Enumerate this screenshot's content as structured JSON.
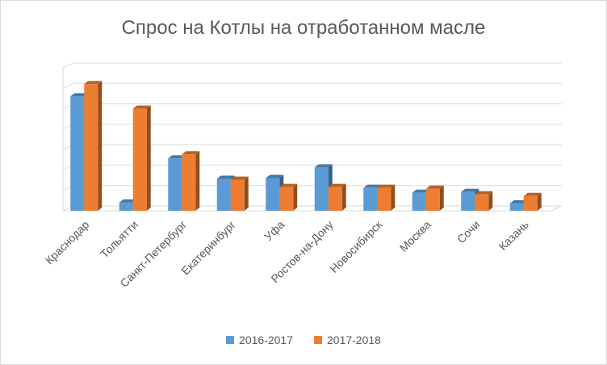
{
  "chart_data": {
    "type": "bar",
    "title": "Спрос на Котлы на отработанном масле",
    "categories": [
      "Краснодар",
      "Тольятти",
      "Санкт-Петербург",
      "Екатеринбург",
      "Уфа",
      "Ростов-на-Дону",
      "Новосибирск",
      "Москва",
      "Сочи",
      "Казань"
    ],
    "series": [
      {
        "name": "2016-2017",
        "color": "#5b9bd5",
        "values": [
          140,
          10,
          64,
          39,
          40,
          53,
          28,
          22,
          23,
          9
        ]
      },
      {
        "name": "2017-2018",
        "color": "#ed7d31",
        "values": [
          155,
          125,
          69,
          38,
          29,
          29,
          28,
          27,
          20,
          18
        ]
      }
    ],
    "ylim": [
      0,
      175
    ],
    "grid": true,
    "legend_position": "bottom"
  }
}
